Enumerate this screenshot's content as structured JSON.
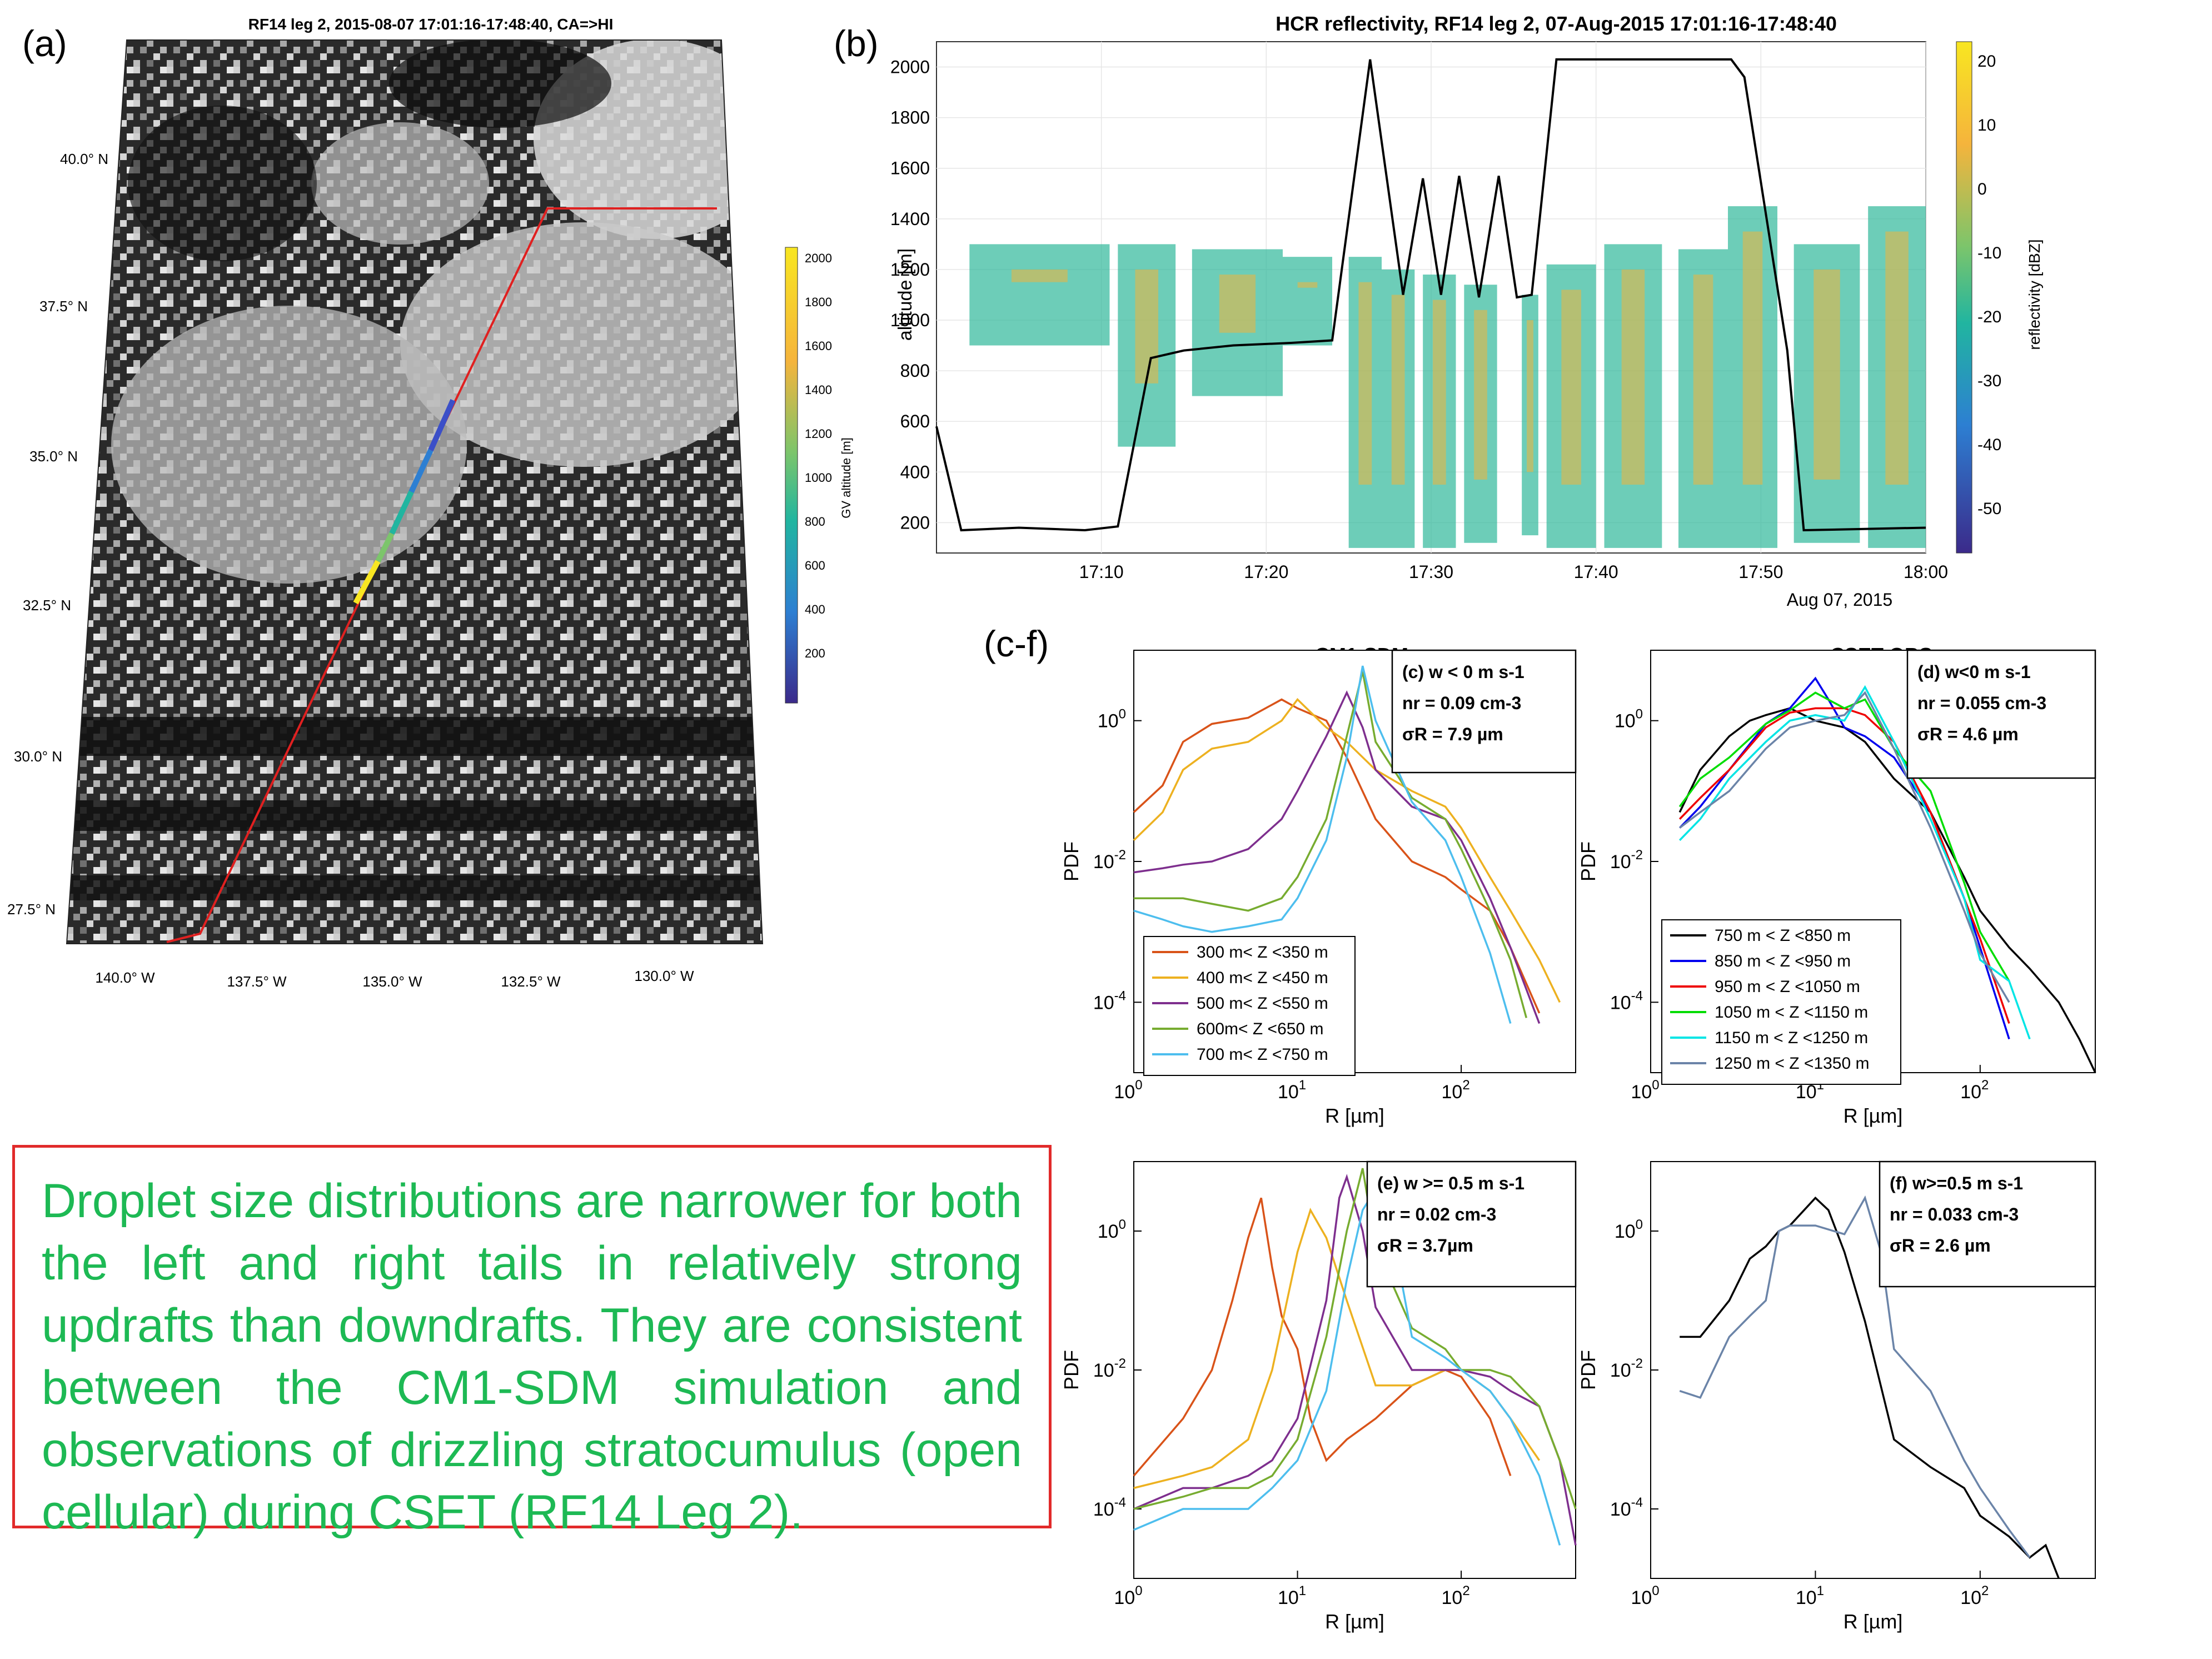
{
  "panel_labels": {
    "a": "(a)",
    "b": "(b)",
    "cf": "(c-f)"
  },
  "panel_a": {
    "title": "RF14 leg 2, 2015-08-07 17:01:16-17:48:40, CA=>HI",
    "lat_labels": [
      "40.0° N",
      "37.5° N",
      "35.0° N",
      "32.5° N",
      "30.0° N",
      "27.5° N"
    ],
    "lon_labels": [
      "140.0° W",
      "137.5° W",
      "135.0° W",
      "132.5° W",
      "130.0° W"
    ],
    "colorbar_label": "GV altitude [m]",
    "colorbar_ticks": [
      "2000",
      "1800",
      "1600",
      "1400",
      "1200",
      "1000",
      "800",
      "600",
      "400",
      "200"
    ],
    "colors": {
      "track": "#e02020",
      "colorbar_top": "#f8e621",
      "colorbar_mid": "#21b5a0",
      "colorbar_bottom": "#3b2a8a"
    }
  },
  "panel_b": {
    "title": "HCR reflectivity, RF14 leg 2, 07-Aug-2015 17:01:16-17:48:40",
    "ylabel": "altitude [m]",
    "colorbar_label": "reflectivity [dBZ]",
    "date_label": "Aug 07, 2015"
  },
  "panel_c_header": "CM1-SDM",
  "panel_d_header": "CSET OBS.",
  "chart_data": [
    {
      "type": "line",
      "name": "flight-altitude-time-series",
      "title": "HCR reflectivity, RF14 leg 2, 07-Aug-2015 17:01:16-17:48:40",
      "xlabel": "",
      "ylabel": "altitude [m]",
      "x_ticks": [
        "17:10",
        "17:20",
        "17:30",
        "17:40",
        "17:50",
        "18:00"
      ],
      "y_ticks": [
        200,
        400,
        600,
        800,
        1000,
        1200,
        1400,
        1600,
        1800,
        2000
      ],
      "xlim_min": [
        0,
        60
      ],
      "ylim": [
        80,
        2100
      ],
      "colorbar": {
        "label": "reflectivity [dBZ]",
        "ticks": [
          20,
          10,
          0,
          -10,
          -20,
          -30,
          -40,
          -50
        ],
        "range": [
          -55,
          24
        ]
      },
      "series": [
        {
          "values_x_min": [
            0,
            1.5,
            5,
            9,
            11,
            13,
            15,
            18,
            21.5,
            24,
            26.3,
            28.3,
            29.5,
            30.6,
            31.7,
            32.9,
            34.1,
            35.2,
            36.1,
            37.6,
            48.2,
            49,
            51.6,
            52.6,
            60
          ],
          "values_y": [
            580,
            170,
            180,
            170,
            185,
            850,
            880,
            900,
            910,
            920,
            2030,
            1100,
            1560,
            1100,
            1570,
            1090,
            1570,
            1090,
            1100,
            2030,
            2030,
            1960,
            880,
            170,
            180
          ]
        }
      ]
    },
    {
      "type": "line",
      "panel": "(c)",
      "xscale": "log",
      "yscale": "log",
      "xlabel": "R [µm]",
      "ylabel": "PDF",
      "xlim": [
        1,
        500
      ],
      "ylim": [
        1e-05,
        10
      ],
      "annotation": [
        "(c) w < 0 m s-1",
        "nr = 0.09 cm-3",
        "σR = 7.9 µm"
      ],
      "series": [
        {
          "name": "300 m< Z <350 m",
          "color": "#d95319",
          "x": [
            1,
            1.5,
            2,
            3,
            5,
            8,
            10,
            15,
            20,
            30,
            50,
            80,
            100,
            150,
            200,
            300
          ],
          "y": [
            0.05,
            0.12,
            0.5,
            0.9,
            1.1,
            2.0,
            1.5,
            1.0,
            0.3,
            0.04,
            0.01,
            0.006,
            0.004,
            0.002,
            0.0006,
            7e-05
          ]
        },
        {
          "name": "400 m< Z <450 m",
          "color": "#edb120",
          "x": [
            1,
            1.5,
            2,
            3,
            5,
            8,
            10,
            15,
            20,
            30,
            50,
            80,
            100,
            150,
            200,
            300,
            400
          ],
          "y": [
            0.02,
            0.05,
            0.2,
            0.4,
            0.5,
            1.0,
            2.0,
            0.8,
            0.5,
            0.2,
            0.1,
            0.06,
            0.03,
            0.006,
            0.002,
            0.0004,
            0.0001
          ]
        },
        {
          "name": "500 m< Z <550 m",
          "color": "#7e2f8e",
          "x": [
            1,
            1.5,
            2,
            3,
            5,
            8,
            10,
            15,
            20,
            25,
            30,
            50,
            80,
            100,
            150,
            200,
            300
          ],
          "y": [
            0.007,
            0.008,
            0.009,
            0.01,
            0.015,
            0.04,
            0.1,
            0.6,
            2.5,
            0.8,
            0.2,
            0.06,
            0.04,
            0.02,
            0.003,
            0.0006,
            5e-05
          ]
        },
        {
          "name": "600m< Z <650 m",
          "color": "#77ac30",
          "x": [
            1,
            1.5,
            2,
            3,
            5,
            8,
            10,
            15,
            20,
            25,
            30,
            50,
            80,
            100,
            150,
            200,
            250
          ],
          "y": [
            0.003,
            0.003,
            0.003,
            0.0025,
            0.002,
            0.003,
            0.006,
            0.04,
            0.6,
            5.0,
            0.5,
            0.08,
            0.04,
            0.015,
            0.002,
            0.0004,
            6e-05
          ]
        },
        {
          "name": "700 m< Z <750 m",
          "color": "#4dbeee",
          "x": [
            1,
            1.5,
            2,
            3,
            5,
            8,
            10,
            15,
            20,
            25,
            30,
            50,
            80,
            100,
            150,
            200
          ],
          "y": [
            0.002,
            0.0015,
            0.0012,
            0.001,
            0.0012,
            0.0015,
            0.003,
            0.02,
            0.3,
            6.0,
            1.0,
            0.07,
            0.02,
            0.006,
            0.0005,
            5e-05
          ]
        }
      ]
    },
    {
      "type": "line",
      "panel": "(d)",
      "xscale": "log",
      "yscale": "log",
      "xlabel": "R [µm]",
      "ylabel": "PDF",
      "xlim": [
        1,
        500
      ],
      "ylim": [
        1e-05,
        10
      ],
      "annotation": [
        "(d) w<0 m s-1",
        "nr = 0.055 cm-3",
        "σR = 4.6 µm"
      ],
      "series": [
        {
          "name": "750 m < Z <850 m",
          "color": "#000000",
          "x": [
            1.5,
            2,
            3,
            4,
            5,
            7,
            10,
            15,
            20,
            30,
            50,
            80,
            100,
            150,
            200,
            300,
            400,
            500
          ],
          "y": [
            0.05,
            0.2,
            0.6,
            1.0,
            1.2,
            1.5,
            1.0,
            0.8,
            0.5,
            0.15,
            0.05,
            0.006,
            0.002,
            0.0006,
            0.0003,
            0.0001,
            3e-05,
            1e-05
          ]
        },
        {
          "name": "850 m < Z <950 m",
          "color": "#0000ee",
          "x": [
            1.5,
            2,
            3,
            5,
            7,
            10,
            12,
            15,
            20,
            30,
            50,
            80,
            100,
            150
          ],
          "y": [
            0.03,
            0.06,
            0.2,
            0.9,
            1.5,
            4.0,
            2.0,
            0.8,
            0.6,
            0.3,
            0.05,
            0.003,
            0.0006,
            3e-05
          ]
        },
        {
          "name": "950 m < Z <1050 m",
          "color": "#ee0000",
          "x": [
            1.5,
            2,
            3,
            5,
            7,
            10,
            15,
            20,
            30,
            50,
            80,
            100,
            150
          ],
          "y": [
            0.04,
            0.08,
            0.2,
            0.8,
            1.3,
            1.5,
            1.5,
            1.2,
            0.5,
            0.05,
            0.003,
            0.0008,
            5e-05
          ]
        },
        {
          "name": "1050 m < Z <1150 m",
          "color": "#00dd00",
          "x": [
            1.5,
            2,
            3,
            5,
            7,
            10,
            15,
            20,
            30,
            50,
            80,
            100,
            150
          ],
          "y": [
            0.06,
            0.15,
            0.3,
            0.9,
            1.4,
            2.5,
            1.5,
            2.0,
            0.4,
            0.1,
            0.005,
            0.001,
            0.0002
          ]
        },
        {
          "name": "1150 m < Z <1250 m",
          "color": "#00e5e5",
          "x": [
            1.5,
            2,
            3,
            5,
            7,
            10,
            15,
            20,
            30,
            50,
            80,
            100,
            150,
            200
          ],
          "y": [
            0.02,
            0.04,
            0.15,
            0.5,
            1.0,
            1.2,
            1.0,
            3.0,
            0.5,
            0.04,
            0.003,
            0.0004,
            0.0002,
            3e-05
          ]
        },
        {
          "name": "1250 m < Z <1350 m",
          "color": "#6b84a8",
          "x": [
            1.5,
            2,
            3,
            5,
            7,
            10,
            15,
            20,
            30,
            50,
            80,
            100,
            150
          ],
          "y": [
            0.03,
            0.05,
            0.1,
            0.4,
            0.8,
            1.0,
            1.2,
            2.5,
            0.4,
            0.03,
            0.002,
            0.0005,
            0.0001
          ]
        }
      ]
    },
    {
      "type": "line",
      "panel": "(e)",
      "xscale": "log",
      "yscale": "log",
      "xlabel": "R [µm]",
      "ylabel": "PDF",
      "xlim": [
        1,
        500
      ],
      "ylim": [
        1e-05,
        10
      ],
      "annotation": [
        "(e) w >= 0.5 m s-1",
        "nr = 0.02 cm-3",
        "σR = 3.7µm"
      ],
      "series": [
        {
          "color": "#d95319",
          "x": [
            1,
            2,
            3,
            4,
            5,
            6,
            7,
            8,
            10,
            12,
            15,
            20,
            30,
            50,
            80,
            100,
            150,
            200
          ],
          "y": [
            0.0003,
            0.002,
            0.01,
            0.1,
            0.8,
            3.0,
            0.3,
            0.06,
            0.02,
            0.002,
            0.0005,
            0.001,
            0.002,
            0.006,
            0.01,
            0.008,
            0.002,
            0.0003
          ]
        },
        {
          "color": "#edb120",
          "x": [
            1,
            2,
            3,
            5,
            7,
            10,
            12,
            15,
            20,
            30,
            50,
            80,
            100,
            150,
            200,
            300
          ],
          "y": [
            0.0002,
            0.0003,
            0.0004,
            0.001,
            0.01,
            0.5,
            2.0,
            0.8,
            0.1,
            0.006,
            0.006,
            0.01,
            0.01,
            0.005,
            0.002,
            0.0005
          ]
        },
        {
          "color": "#7e2f8e",
          "x": [
            1,
            2,
            3,
            5,
            7,
            10,
            15,
            18,
            20,
            25,
            30,
            50,
            80,
            100,
            150,
            200,
            300,
            400,
            500
          ],
          "y": [
            0.0001,
            0.0002,
            0.0002,
            0.0003,
            0.0005,
            0.002,
            0.1,
            3.0,
            6.0,
            1.0,
            0.08,
            0.01,
            0.01,
            0.01,
            0.008,
            0.005,
            0.003,
            0.0005,
            3e-05
          ]
        },
        {
          "color": "#77ac30",
          "x": [
            1,
            2,
            3,
            5,
            7,
            10,
            15,
            20,
            25,
            30,
            50,
            80,
            100,
            150,
            200,
            300,
            400,
            500
          ],
          "y": [
            0.0001,
            0.00015,
            0.0002,
            0.0002,
            0.0003,
            0.001,
            0.03,
            1.0,
            8.0,
            0.6,
            0.04,
            0.02,
            0.01,
            0.01,
            0.008,
            0.003,
            0.0005,
            0.0001
          ]
        },
        {
          "color": "#4dbeee",
          "x": [
            1,
            2,
            3,
            5,
            7,
            10,
            15,
            20,
            25,
            30,
            40,
            50,
            80,
            100,
            150,
            200,
            300,
            400
          ],
          "y": [
            5e-05,
            0.0001,
            0.0001,
            0.0001,
            0.0002,
            0.0005,
            0.005,
            0.2,
            2.0,
            4.0,
            0.5,
            0.03,
            0.015,
            0.01,
            0.005,
            0.002,
            0.0003,
            3e-05
          ]
        }
      ]
    },
    {
      "type": "line",
      "panel": "(f)",
      "xscale": "log",
      "yscale": "log",
      "xlabel": "R [µm]",
      "ylabel": "PDF",
      "xlim": [
        1,
        500
      ],
      "ylim": [
        1e-05,
        10
      ],
      "annotation": [
        "(f) w>=0.5 m s-1",
        "nr = 0.033 cm-3",
        "σR = 2.6 µm"
      ],
      "series": [
        {
          "color": "#000000",
          "x": [
            1.5,
            2,
            3,
            4,
            5,
            6,
            7,
            10,
            12,
            15,
            20,
            30,
            50,
            80,
            100,
            150,
            200,
            250,
            300
          ],
          "y": [
            0.03,
            0.03,
            0.1,
            0.4,
            0.6,
            1.0,
            1.2,
            3.0,
            2.0,
            0.5,
            0.05,
            0.001,
            0.0004,
            0.0002,
            8e-05,
            4e-05,
            2e-05,
            3e-05,
            1e-05
          ]
        },
        {
          "color": "#6b84a8",
          "x": [
            1.5,
            2,
            3,
            4,
            5,
            6,
            7,
            10,
            15,
            20,
            25,
            30,
            50,
            80,
            100,
            150,
            200
          ],
          "y": [
            0.005,
            0.004,
            0.03,
            0.06,
            0.1,
            1.0,
            1.2,
            1.2,
            0.9,
            3.0,
            0.5,
            0.02,
            0.005,
            0.0005,
            0.0002,
            5e-05,
            2e-05
          ]
        }
      ]
    }
  ],
  "summary_text": "Droplet size distributions are narrower for both the left and right tails in relatively strong updrafts than downdrafts. They are consistent between the CM1-SDM simulation and observations of drizzling stratocumulus (open cellular) during CSET (RF14 Leg 2)."
}
